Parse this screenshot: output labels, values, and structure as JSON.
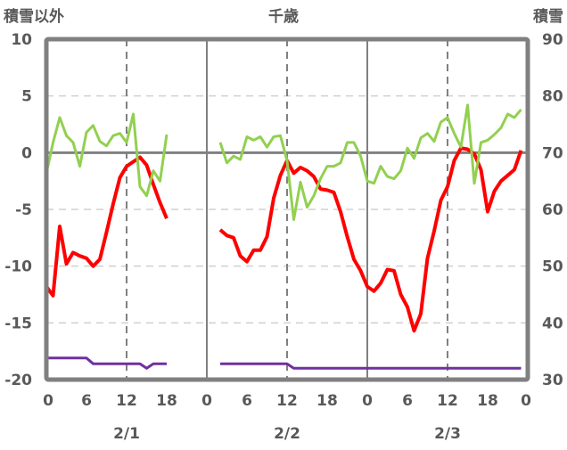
{
  "chart_data": {
    "type": "line",
    "title": "千歳",
    "ylabel_left": "積雪以外",
    "ylabel_right": "積雪",
    "ylim_left": [
      -20,
      10
    ],
    "ylim_right": [
      30,
      90
    ],
    "yticks_left": [
      10,
      5,
      0,
      -5,
      -10,
      -15,
      -20
    ],
    "yticks_right": [
      90,
      80,
      70,
      60,
      50,
      40,
      30
    ],
    "x_unit": "hours from 2/1 0:00",
    "xlim": [
      0,
      72
    ],
    "xtick_labels": [
      "0",
      "6",
      "12",
      "18",
      "0",
      "6",
      "12",
      "18",
      "0",
      "6",
      "12",
      "18",
      "0"
    ],
    "day_labels": [
      "2/1",
      "2/2",
      "2/3"
    ],
    "grid": true,
    "colors": {
      "red": "#ff0000",
      "green": "#92d050",
      "purple": "#7030a0",
      "axis": "#808080"
    },
    "series": [
      {
        "name": "red",
        "axis": "left",
        "color": "#ff0000",
        "x": [
          0,
          1,
          2,
          3,
          4,
          5,
          6,
          7,
          8,
          9,
          10,
          11,
          12,
          13,
          14,
          15,
          16,
          17,
          18,
          null,
          26,
          27,
          28,
          29,
          30,
          31,
          32,
          33,
          34,
          35,
          36,
          37,
          38,
          39,
          40,
          41,
          42,
          43,
          44,
          45,
          46,
          47,
          48,
          49,
          50,
          51,
          52,
          53,
          54,
          55,
          56,
          57,
          58,
          59,
          60,
          61,
          62,
          63,
          64,
          65,
          66,
          67,
          68,
          69,
          70,
          71
        ],
        "values": [
          -11.8,
          -12.6,
          -6.5,
          -9.8,
          -8.8,
          -9.1,
          -9.3,
          -10,
          -9.4,
          -7,
          -4.5,
          -2.2,
          -1.2,
          -0.8,
          -0.4,
          -1.1,
          -2.8,
          -4.4,
          -5.8,
          null,
          -6.8,
          -7.3,
          -7.5,
          -9.1,
          -9.6,
          -8.6,
          -8.6,
          -7.4,
          -4.0,
          -2.0,
          -0.7,
          -1.8,
          -1.3,
          -1.6,
          -2.1,
          -3.2,
          -3.3,
          -3.5,
          -5.2,
          -7.4,
          -9.4,
          -10.4,
          -11.8,
          -12.2,
          -11.5,
          -10.3,
          -10.4,
          -12.5,
          -13.6,
          -15.7,
          -14.2,
          -9.3,
          -6.9,
          -4.2,
          -3.0,
          -0.7,
          0.4,
          0.3,
          -0.1,
          -1.5,
          -5.2,
          -3.4,
          -2.5,
          -2.0,
          -1.5,
          0.2
        ]
      },
      {
        "name": "green",
        "axis": "left",
        "color": "#92d050",
        "x": [
          0,
          1,
          2,
          3,
          4,
          5,
          6,
          7,
          8,
          9,
          10,
          11,
          12,
          13,
          14,
          15,
          16,
          17,
          18,
          null,
          26,
          27,
          28,
          29,
          30,
          31,
          32,
          33,
          34,
          35,
          36,
          37,
          38,
          39,
          40,
          41,
          42,
          43,
          44,
          45,
          46,
          47,
          48,
          49,
          50,
          51,
          52,
          53,
          54,
          55,
          56,
          57,
          58,
          59,
          60,
          61,
          62,
          63,
          64,
          65,
          66,
          67,
          68,
          69,
          70,
          71
        ],
        "values": [
          -1.8,
          0.9,
          3.1,
          1.5,
          0.9,
          -1.2,
          1.8,
          2.4,
          1.0,
          0.6,
          1.5,
          1.7,
          0.9,
          3.4,
          -3.0,
          -3.8,
          -1.6,
          -2.5,
          1.6,
          null,
          0.9,
          -0.9,
          -0.3,
          -0.6,
          1.4,
          1.1,
          1.4,
          0.5,
          1.4,
          1.5,
          -0.7,
          -5.9,
          -2.6,
          -4.8,
          -3.8,
          -2.3,
          -1.2,
          -1.2,
          -0.9,
          0.9,
          0.9,
          -0.3,
          -2.5,
          -2.7,
          -1.2,
          -2.1,
          -2.3,
          -1.6,
          0.4,
          -0.5,
          1.3,
          1.7,
          1.0,
          2.7,
          3.1,
          1.7,
          0.5,
          4.2,
          -2.7,
          0.9,
          1.1,
          1.6,
          2.2,
          3.4,
          3.1,
          3.8
        ]
      },
      {
        "name": "purple",
        "axis": "right",
        "color": "#7030a0",
        "x": [
          0,
          6,
          7,
          14,
          15,
          16,
          18,
          null,
          26,
          36,
          37,
          71
        ],
        "values": [
          33.8,
          33.8,
          32.8,
          32.8,
          32.0,
          32.8,
          32.8,
          null,
          32.8,
          32.8,
          32.0,
          32.0
        ]
      }
    ]
  }
}
